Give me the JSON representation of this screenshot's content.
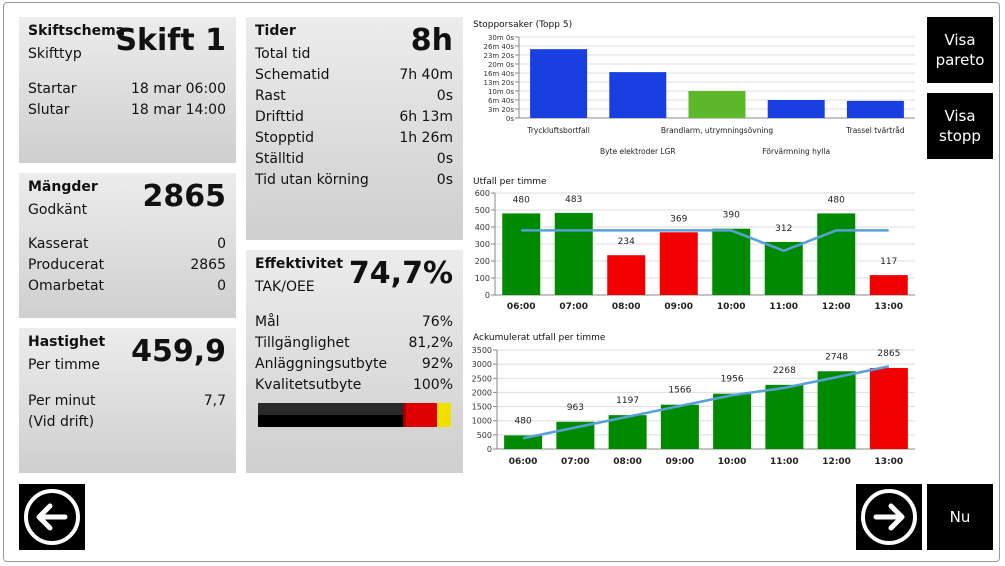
{
  "panels": {
    "shift": {
      "title": "Skiftschema",
      "subtitle": "Skifttyp",
      "big": "Skift 1",
      "rows": [
        [
          "Startar",
          "18 mar 06:00"
        ],
        [
          "Slutar",
          "18 mar 14:00"
        ]
      ]
    },
    "quantities": {
      "title": "Mängder",
      "subtitle": "Godkänt",
      "big": "2865",
      "rows": [
        [
          "Kasserat",
          "0"
        ],
        [
          "Producerat",
          "2865"
        ],
        [
          "Omarbetat",
          "0"
        ]
      ]
    },
    "speed": {
      "title": "Hastighet",
      "subtitle": "Per timme",
      "big": "459,9",
      "rows": [
        [
          "Per minut",
          "7,7"
        ]
      ],
      "note": "(Vid drift)"
    },
    "times": {
      "title": "Tider",
      "subtitle": "Total tid",
      "big": "8h",
      "rows": [
        [
          "Schematid",
          "7h 40m"
        ],
        [
          "Rast",
          "0s"
        ],
        [
          "Drifttid",
          "6h 13m"
        ],
        [
          "Stopptid",
          "1h 26m"
        ],
        [
          "Ställtid",
          "0s"
        ],
        [
          "Tid utan körning",
          "0s"
        ]
      ]
    },
    "efficiency": {
      "title": "Effektivitet",
      "subtitle": "TAK/OEE",
      "big": "74,7%",
      "rows": [
        [
          "Mål",
          "76%"
        ],
        [
          "Tillgänglighet",
          "81,2%"
        ],
        [
          "Anläggningsutbyte",
          "92%"
        ],
        [
          "Kvalitetsutbyte",
          "100%"
        ]
      ]
    }
  },
  "buttons": {
    "pareto": "Visa pareto",
    "stops": "Visa stopp",
    "now": "Nu"
  },
  "charts": [
    {
      "type": "bar",
      "title": "Stopporsaker (Topp 5)",
      "categories": [
        "Tryckluftsbortfall",
        "Byte elektroder LGR",
        "Brandlarm, utrymningsövning",
        "Förvärmning hylla",
        "Trassel tvärtråd"
      ],
      "values": [
        1530,
        1020,
        600,
        400,
        380
      ],
      "colors": [
        "#1a3fe0",
        "#1a3fe0",
        "#5cb82a",
        "#1a3fe0",
        "#1a3fe0"
      ],
      "ylim": [
        0,
        1800
      ],
      "yticks": [
        {
          "value": 0,
          "label": "0s"
        },
        {
          "value": 200,
          "label": "3m 20s"
        },
        {
          "value": 400,
          "label": "6m 40s"
        },
        {
          "value": 600,
          "label": "10m 0s"
        },
        {
          "value": 800,
          "label": "13m 20s"
        },
        {
          "value": 1000,
          "label": "16m 40s"
        },
        {
          "value": 1200,
          "label": "20m 0s"
        },
        {
          "value": 1400,
          "label": "23m 20s"
        },
        {
          "value": 1600,
          "label": "26m 40s"
        },
        {
          "value": 1800,
          "label": "30m 0s"
        }
      ]
    },
    {
      "type": "bar",
      "title": "Utfall per timme",
      "categories": [
        "06:00",
        "07:00",
        "08:00",
        "09:00",
        "10:00",
        "11:00",
        "12:00",
        "13:00"
      ],
      "values": [
        480,
        483,
        234,
        369,
        390,
        312,
        480,
        117
      ],
      "colors": [
        "#008a00",
        "#008a00",
        "#f00000",
        "#f00000",
        "#008a00",
        "#008a00",
        "#008a00",
        "#f00000"
      ],
      "line": {
        "color": "#5aa0d8",
        "values": [
          380,
          380,
          380,
          380,
          380,
          260,
          380,
          380
        ]
      },
      "ylim": [
        0,
        600
      ],
      "yticks": [
        0,
        100,
        200,
        300,
        400,
        500,
        600
      ]
    },
    {
      "type": "bar",
      "title": "Ackumulerat utfall per timme",
      "categories": [
        "06:00",
        "07:00",
        "08:00",
        "09:00",
        "10:00",
        "11:00",
        "12:00",
        "13:00"
      ],
      "values": [
        480,
        963,
        1197,
        1566,
        1956,
        2268,
        2748,
        2865
      ],
      "colors": [
        "#008a00",
        "#008a00",
        "#008a00",
        "#008a00",
        "#008a00",
        "#008a00",
        "#008a00",
        "#f00000"
      ],
      "line": {
        "color": "#5aa0d8",
        "values": [
          380,
          760,
          1140,
          1520,
          1900,
          2160,
          2540,
          2920
        ]
      },
      "ylim": [
        0,
        3500
      ],
      "yticks": [
        0,
        500,
        1000,
        1500,
        2000,
        2500,
        3000,
        3500
      ]
    }
  ]
}
